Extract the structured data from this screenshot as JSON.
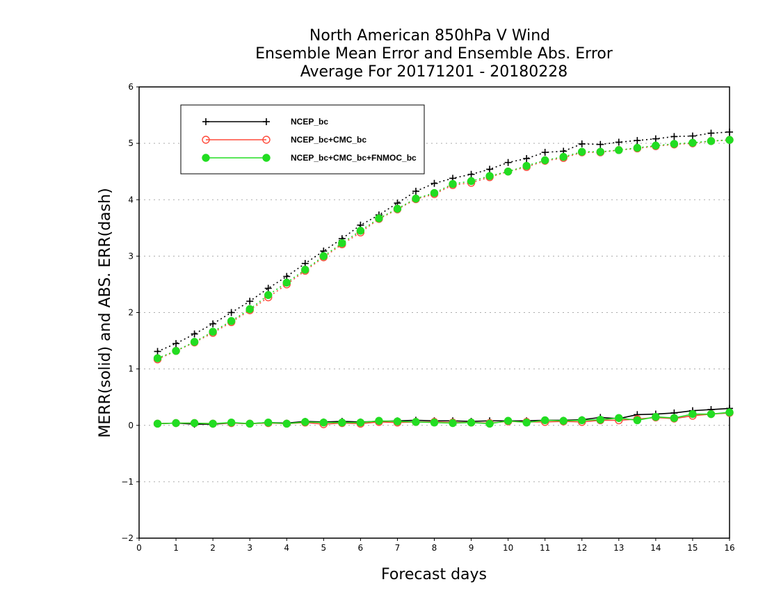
{
  "chart_data": {
    "type": "line",
    "title": [
      "North American 850hPa V Wind",
      "Ensemble Mean Error and Ensemble Abs. Error",
      "Average For 20171201 - 20180228"
    ],
    "xlabel": "Forecast days",
    "ylabel": "MERR(solid) and ABS. ERR(dash)",
    "xlim": [
      0,
      16
    ],
    "ylim": [
      -2,
      6
    ],
    "xticks": [
      0,
      1,
      2,
      3,
      4,
      5,
      6,
      7,
      8,
      9,
      10,
      11,
      12,
      13,
      14,
      15,
      16
    ],
    "yticks": [
      -2,
      -1,
      0,
      1,
      2,
      3,
      4,
      5,
      6
    ],
    "xtick_labels": [
      "0",
      "1",
      "2",
      "3",
      "4",
      "5",
      "6",
      "7",
      "8",
      "9",
      "10",
      "11",
      "12",
      "13",
      "14",
      "15",
      "16"
    ],
    "ytick_labels": [
      "−2",
      "−1",
      "0",
      "1",
      "2",
      "3",
      "4",
      "5",
      "6"
    ],
    "grid": "horizontal dotted",
    "legend_position": "top-left",
    "x": [
      0.5,
      1.0,
      1.5,
      2.0,
      2.5,
      3.0,
      3.5,
      4.0,
      4.5,
      5.0,
      5.5,
      6.0,
      6.5,
      7.0,
      7.5,
      8.0,
      8.5,
      9.0,
      9.5,
      10.0,
      10.5,
      11.0,
      11.5,
      12.0,
      12.5,
      13.0,
      13.5,
      14.0,
      14.5,
      15.0,
      15.5,
      16.0
    ],
    "series": [
      {
        "name": "NCEP_bc",
        "color": "#000000",
        "marker": "plus",
        "merr": [
          0.03,
          0.04,
          0.02,
          0.02,
          0.04,
          0.03,
          0.05,
          0.04,
          0.07,
          0.06,
          0.07,
          0.06,
          0.07,
          0.08,
          0.09,
          0.08,
          0.08,
          0.07,
          0.08,
          0.08,
          0.08,
          0.09,
          0.09,
          0.1,
          0.14,
          0.12,
          0.19,
          0.2,
          0.22,
          0.26,
          0.28,
          0.3
        ],
        "abs_err": [
          1.31,
          1.45,
          1.62,
          1.8,
          2.0,
          2.2,
          2.43,
          2.64,
          2.87,
          3.09,
          3.31,
          3.55,
          3.73,
          3.94,
          4.15,
          4.29,
          4.38,
          4.45,
          4.54,
          4.66,
          4.73,
          4.84,
          4.86,
          4.99,
          4.98,
          5.02,
          5.05,
          5.08,
          5.12,
          5.13,
          5.18,
          5.2
        ]
      },
      {
        "name": "NCEP_bc+CMC_bc",
        "color": "#ff4a3a",
        "marker": "open-circle",
        "merr": [
          0.03,
          0.04,
          0.04,
          0.03,
          0.04,
          0.03,
          0.04,
          0.03,
          0.05,
          0.02,
          0.04,
          0.03,
          0.06,
          0.05,
          0.06,
          0.06,
          0.05,
          0.05,
          0.04,
          0.07,
          0.06,
          0.06,
          0.07,
          0.06,
          0.09,
          0.09,
          0.11,
          0.14,
          0.12,
          0.17,
          0.2,
          0.22
        ],
        "abs_err": [
          1.17,
          1.32,
          1.47,
          1.64,
          1.83,
          2.04,
          2.27,
          2.5,
          2.74,
          2.98,
          3.21,
          3.42,
          3.66,
          3.83,
          4.01,
          4.1,
          4.26,
          4.3,
          4.4,
          4.5,
          4.58,
          4.69,
          4.74,
          4.84,
          4.84,
          4.88,
          4.91,
          4.95,
          4.98,
          5.0,
          5.04,
          5.06
        ]
      },
      {
        "name": "NCEP_bc+CMC_bc+FNMOC_bc",
        "color": "#22dd22",
        "marker": "filled-circle",
        "merr": [
          0.03,
          0.04,
          0.04,
          0.03,
          0.05,
          0.03,
          0.05,
          0.03,
          0.06,
          0.05,
          0.05,
          0.05,
          0.08,
          0.07,
          0.06,
          0.05,
          0.04,
          0.05,
          0.03,
          0.08,
          0.05,
          0.09,
          0.08,
          0.09,
          0.1,
          0.13,
          0.09,
          0.15,
          0.13,
          0.2,
          0.2,
          0.23
        ],
        "abs_err": [
          1.19,
          1.32,
          1.48,
          1.66,
          1.85,
          2.06,
          2.31,
          2.53,
          2.76,
          3.0,
          3.23,
          3.45,
          3.67,
          3.84,
          4.02,
          4.12,
          4.28,
          4.33,
          4.42,
          4.5,
          4.6,
          4.7,
          4.76,
          4.85,
          4.85,
          4.88,
          4.92,
          4.96,
          4.99,
          5.01,
          5.04,
          5.06
        ]
      }
    ]
  }
}
